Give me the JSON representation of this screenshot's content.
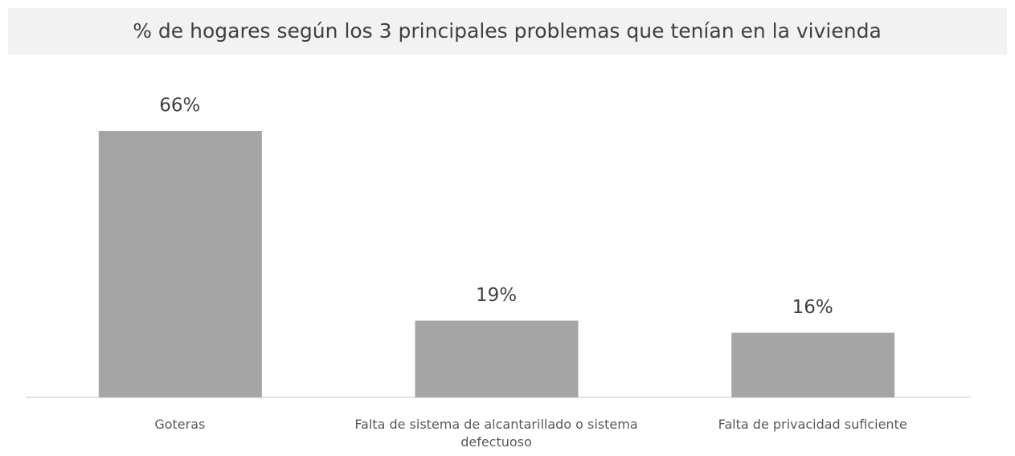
{
  "chart_data": {
    "type": "bar",
    "title": "% de hogares según los 3 principales problemas que tenían en la vivienda",
    "categories": [
      "Goteras",
      "Falta de sistema de alcantarillado o sistema defectuoso",
      "Falta de privacidad suficiente"
    ],
    "values": [
      66,
      19,
      16
    ],
    "value_labels": [
      "66%",
      "19%",
      "16%"
    ],
    "color": "#a5a5a5"
  }
}
